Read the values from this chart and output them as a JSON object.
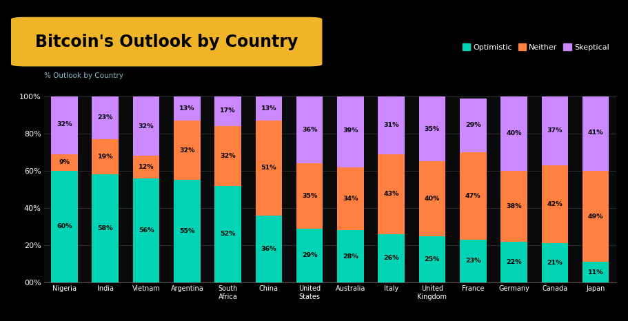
{
  "title": "Bitcoin's Outlook by Country",
  "subtitle": "% Outlook by Country",
  "background_color": "#000000",
  "plot_bg_color": "#0a0a0a",
  "title_bg_color": "#F0B429",
  "categories": [
    "Nigeria",
    "India",
    "Vietnam",
    "Argentina",
    "South\nAfrica",
    "China",
    "United\nStates",
    "Australia",
    "Italy",
    "United\nKingdom",
    "France",
    "Germany",
    "Canada",
    "Japan"
  ],
  "optimistic": [
    60,
    58,
    56,
    55,
    52,
    36,
    29,
    28,
    26,
    25,
    23,
    22,
    21,
    11
  ],
  "neither": [
    9,
    19,
    12,
    32,
    32,
    51,
    35,
    34,
    43,
    40,
    47,
    38,
    42,
    49
  ],
  "skeptical": [
    32,
    23,
    32,
    13,
    17,
    13,
    36,
    39,
    31,
    35,
    29,
    40,
    37,
    41
  ],
  "color_optimistic": "#00D4B4",
  "color_neither": "#FF8040",
  "color_skeptical": "#CC88FF",
  "text_color": "#FFFFFF",
  "subtitle_color": "#88BBCC",
  "grid_color": "#333333",
  "bar_width": 0.65,
  "legend_labels": [
    "Optimistic",
    "Neither",
    "Skeptical"
  ],
  "label_fontsize": 6.8,
  "ytick_labels": [
    "00%",
    "20%",
    "40%",
    "60%",
    "80%",
    "100%"
  ],
  "ytick_values": [
    0,
    20,
    40,
    60,
    80,
    100
  ]
}
